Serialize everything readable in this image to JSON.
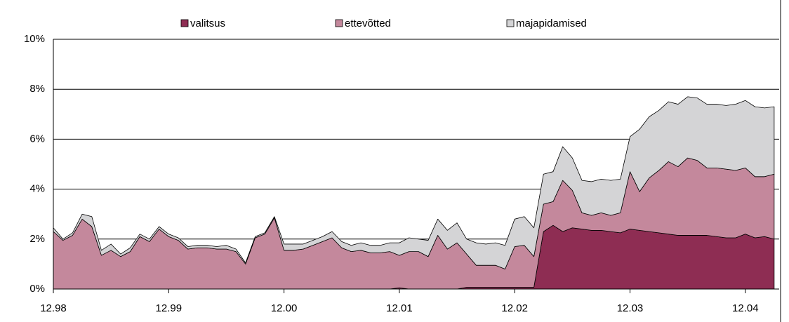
{
  "chart_data": {
    "type": "stacked_area",
    "categories": [
      "12.98",
      null,
      null,
      null,
      null,
      null,
      null,
      null,
      null,
      null,
      null,
      null,
      "12.99",
      null,
      null,
      null,
      null,
      null,
      null,
      null,
      null,
      null,
      null,
      null,
      "12.00",
      null,
      null,
      null,
      null,
      null,
      null,
      null,
      null,
      null,
      null,
      null,
      "12.01",
      null,
      null,
      null,
      null,
      null,
      null,
      null,
      null,
      null,
      null,
      null,
      "12.02",
      null,
      null,
      null,
      null,
      null,
      null,
      null,
      null,
      null,
      null,
      null,
      "12.03",
      null,
      null,
      null,
      null,
      null,
      null,
      null,
      null,
      null,
      null,
      null,
      "12.04",
      null,
      null,
      null
    ],
    "series": [
      {
        "name": "valitsus",
        "color": "#8e2d53",
        "values": [
          0,
          0,
          0,
          0,
          0,
          0,
          0,
          0,
          0,
          0,
          0,
          0,
          0,
          0,
          0,
          0,
          0,
          0,
          0,
          0,
          0,
          0,
          0,
          0,
          0,
          0,
          0,
          0,
          0,
          0,
          0,
          0,
          0,
          0,
          0,
          0,
          0.05,
          0,
          0,
          0,
          0,
          0,
          0,
          0.07,
          0.07,
          0.07,
          0.07,
          0.07,
          0.07,
          0.07,
          0.07,
          2.3,
          2.55,
          2.3,
          2.45,
          2.4,
          2.35,
          2.35,
          2.3,
          2.25,
          2.4,
          2.35,
          2.3,
          2.25,
          2.2,
          2.15,
          2.15,
          2.15,
          2.15,
          2.1,
          2.05,
          2.05,
          2.2,
          2.05,
          2.1,
          2.0
        ]
      },
      {
        "name": "ettevõtted",
        "color": "#c4889c",
        "values": [
          2.3,
          1.95,
          2.15,
          2.8,
          2.5,
          1.35,
          1.55,
          1.3,
          1.5,
          2.1,
          1.9,
          2.4,
          2.1,
          1.95,
          1.6,
          1.65,
          1.65,
          1.6,
          1.6,
          1.5,
          1.0,
          2.05,
          2.2,
          2.85,
          1.55,
          1.55,
          1.6,
          1.75,
          1.9,
          2.05,
          1.65,
          1.5,
          1.55,
          1.45,
          1.45,
          1.5,
          1.3,
          1.5,
          1.5,
          1.3,
          2.15,
          1.6,
          1.85,
          1.33,
          0.88,
          0.88,
          0.88,
          0.73,
          1.63,
          1.68,
          1.23,
          1.1,
          0.95,
          2.05,
          1.5,
          0.65,
          0.6,
          0.7,
          0.65,
          0.8,
          2.3,
          1.55,
          2.15,
          2.5,
          2.9,
          2.75,
          3.1,
          3.0,
          2.7,
          2.75,
          2.75,
          2.7,
          2.65,
          2.45,
          2.4,
          2.6
        ]
      },
      {
        "name": "majapidamised",
        "color": "#d4d4d6",
        "values": [
          0.15,
          0.05,
          0.1,
          0.2,
          0.4,
          0.2,
          0.25,
          0.1,
          0.15,
          0.1,
          0.1,
          0.1,
          0.1,
          0.1,
          0.1,
          0.1,
          0.1,
          0.1,
          0.15,
          0.1,
          0.05,
          0.05,
          0.05,
          0.05,
          0.25,
          0.25,
          0.2,
          0.2,
          0.2,
          0.25,
          0.25,
          0.25,
          0.3,
          0.3,
          0.3,
          0.35,
          0.5,
          0.55,
          0.5,
          0.65,
          0.65,
          0.75,
          0.8,
          0.6,
          0.9,
          0.85,
          0.9,
          0.95,
          1.1,
          1.15,
          1.15,
          1.2,
          1.2,
          1.35,
          1.3,
          1.3,
          1.35,
          1.35,
          1.4,
          1.35,
          1.4,
          2.5,
          2.45,
          2.4,
          2.4,
          2.5,
          2.45,
          2.5,
          2.55,
          2.55,
          2.55,
          2.65,
          2.7,
          2.8,
          2.75,
          2.7
        ]
      }
    ],
    "ylim": [
      0,
      10
    ],
    "yticks": [
      {
        "value": 0,
        "label": "0%"
      },
      {
        "value": 2,
        "label": "2%"
      },
      {
        "value": 4,
        "label": "4%"
      },
      {
        "value": 6,
        "label": "6%"
      },
      {
        "value": 8,
        "label": "8%"
      },
      {
        "value": 10,
        "label": "10%"
      }
    ],
    "grid": true,
    "legend": "top"
  }
}
